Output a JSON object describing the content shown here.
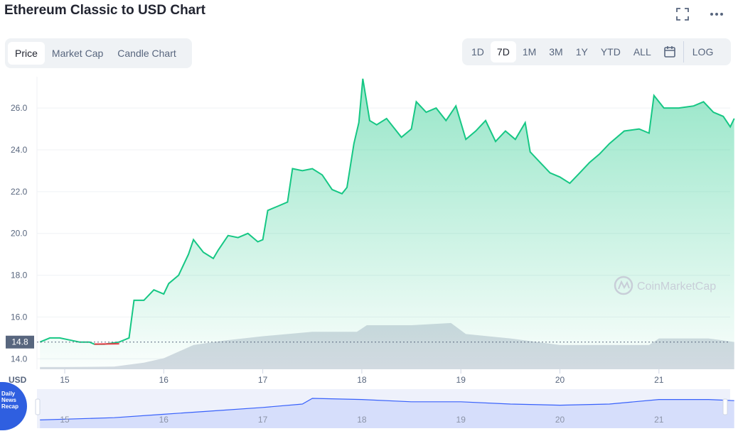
{
  "header": {
    "title": "Ethereum Classic to USD Chart"
  },
  "icons": {
    "fullscreen": "fullscreen-icon",
    "more": "more-icon",
    "calendar": "calendar-icon"
  },
  "tabs": [
    {
      "label": "Price",
      "active": true
    },
    {
      "label": "Market Cap",
      "active": false
    },
    {
      "label": "Candle Chart",
      "active": false
    }
  ],
  "ranges": [
    {
      "label": "1D",
      "active": false
    },
    {
      "label": "7D",
      "active": true
    },
    {
      "label": "1M",
      "active": false
    },
    {
      "label": "3M",
      "active": false
    },
    {
      "label": "1Y",
      "active": false
    },
    {
      "label": "YTD",
      "active": false
    },
    {
      "label": "ALL",
      "active": false
    }
  ],
  "log_label": "LOG",
  "watermark": "CoinMarketCap",
  "badge_text": "Daily News Recap",
  "colors": {
    "line": "#16c784",
    "line_below_open": "#ea3943",
    "area": "#16c784",
    "volume": "#cfd3de",
    "navigator": "#3861fb"
  },
  "chart_data": {
    "type": "area",
    "currency_label": "USD",
    "current_price_label": "14.8",
    "y_ticks": [
      14.0,
      16.0,
      18.0,
      20.0,
      22.0,
      24.0,
      26.0
    ],
    "ylim": [
      13.5,
      27.5
    ],
    "x_ticks": [
      "15",
      "16",
      "17",
      "18",
      "19",
      "20",
      "21"
    ],
    "navigator_ticks": [
      "15",
      "16",
      "17",
      "18",
      "19",
      "20",
      "21"
    ],
    "grid": true,
    "series": [
      {
        "values": [
          [
            14.75,
            14.8
          ],
          [
            14.85,
            15.0
          ],
          [
            14.95,
            15.0
          ],
          [
            15.05,
            14.9
          ],
          [
            15.15,
            14.8
          ],
          [
            15.25,
            14.8
          ],
          [
            15.3,
            14.7
          ],
          [
            15.4,
            14.7
          ],
          [
            15.55,
            14.8
          ],
          [
            15.65,
            15.0
          ],
          [
            15.7,
            16.8
          ],
          [
            15.8,
            16.8
          ],
          [
            15.9,
            17.3
          ],
          [
            16.0,
            17.1
          ],
          [
            16.05,
            17.6
          ],
          [
            16.15,
            18.0
          ],
          [
            16.25,
            19.0
          ],
          [
            16.3,
            19.7
          ],
          [
            16.4,
            19.1
          ],
          [
            16.5,
            18.8
          ],
          [
            16.55,
            19.2
          ],
          [
            16.65,
            19.9
          ],
          [
            16.75,
            19.8
          ],
          [
            16.85,
            20.0
          ],
          [
            16.95,
            19.6
          ],
          [
            17.0,
            19.7
          ],
          [
            17.05,
            21.1
          ],
          [
            17.15,
            21.3
          ],
          [
            17.25,
            21.5
          ],
          [
            17.3,
            23.1
          ],
          [
            17.4,
            23.0
          ],
          [
            17.5,
            23.1
          ],
          [
            17.6,
            22.8
          ],
          [
            17.7,
            22.1
          ],
          [
            17.8,
            21.9
          ],
          [
            17.85,
            22.2
          ],
          [
            17.92,
            24.3
          ],
          [
            17.97,
            25.3
          ],
          [
            18.01,
            27.4
          ],
          [
            18.08,
            25.4
          ],
          [
            18.15,
            25.2
          ],
          [
            18.25,
            25.5
          ],
          [
            18.4,
            24.6
          ],
          [
            18.5,
            25.0
          ],
          [
            18.55,
            26.3
          ],
          [
            18.65,
            25.8
          ],
          [
            18.75,
            26.0
          ],
          [
            18.85,
            25.4
          ],
          [
            18.95,
            26.1
          ],
          [
            19.05,
            24.5
          ],
          [
            19.15,
            24.9
          ],
          [
            19.25,
            25.4
          ],
          [
            19.35,
            24.4
          ],
          [
            19.45,
            24.9
          ],
          [
            19.55,
            24.5
          ],
          [
            19.65,
            25.3
          ],
          [
            19.7,
            23.9
          ],
          [
            19.8,
            23.4
          ],
          [
            19.9,
            22.9
          ],
          [
            20.0,
            22.7
          ],
          [
            20.1,
            22.4
          ],
          [
            20.2,
            22.9
          ],
          [
            20.3,
            23.4
          ],
          [
            20.4,
            23.8
          ],
          [
            20.5,
            24.3
          ],
          [
            20.65,
            24.9
          ],
          [
            20.8,
            25.0
          ],
          [
            20.9,
            24.8
          ],
          [
            20.95,
            26.6
          ],
          [
            21.05,
            26.0
          ],
          [
            21.2,
            26.0
          ],
          [
            21.35,
            26.1
          ],
          [
            21.45,
            26.3
          ],
          [
            21.55,
            25.8
          ],
          [
            21.65,
            25.6
          ],
          [
            21.72,
            25.1
          ],
          [
            21.76,
            25.5
          ]
        ]
      }
    ],
    "volume": [
      [
        14.75,
        0.05
      ],
      [
        15.0,
        0.05
      ],
      [
        15.5,
        0.06
      ],
      [
        15.8,
        0.15
      ],
      [
        16.0,
        0.25
      ],
      [
        16.3,
        0.55
      ],
      [
        16.6,
        0.65
      ],
      [
        17.0,
        0.75
      ],
      [
        17.5,
        0.85
      ],
      [
        17.95,
        0.85
      ],
      [
        18.05,
        1.0
      ],
      [
        18.5,
        1.0
      ],
      [
        18.9,
        1.05
      ],
      [
        19.05,
        0.8
      ],
      [
        19.5,
        0.7
      ],
      [
        20.0,
        0.55
      ],
      [
        20.5,
        0.55
      ],
      [
        20.9,
        0.55
      ],
      [
        21.0,
        0.7
      ],
      [
        21.5,
        0.7
      ],
      [
        21.76,
        0.62
      ]
    ],
    "navigator": [
      [
        14.75,
        0.05
      ],
      [
        15.5,
        0.15
      ],
      [
        16.0,
        0.3
      ],
      [
        16.5,
        0.45
      ],
      [
        17.0,
        0.6
      ],
      [
        17.4,
        0.75
      ],
      [
        17.5,
        1.0
      ],
      [
        18.0,
        0.95
      ],
      [
        18.5,
        0.85
      ],
      [
        19.0,
        0.85
      ],
      [
        19.5,
        0.75
      ],
      [
        20.0,
        0.7
      ],
      [
        20.5,
        0.75
      ],
      [
        21.0,
        0.95
      ],
      [
        21.5,
        0.95
      ],
      [
        21.76,
        0.9
      ]
    ]
  }
}
